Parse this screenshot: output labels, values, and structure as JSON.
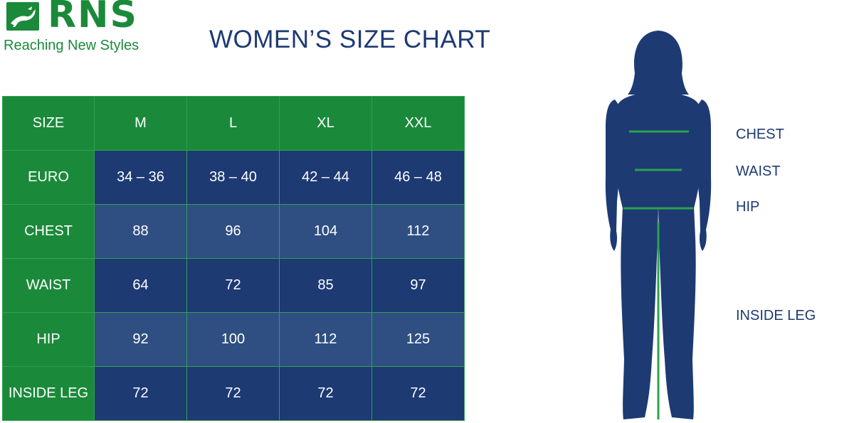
{
  "brand": {
    "name": "RNS",
    "tagline": "Reaching New Styles",
    "logo_icon": "leaping-animal-icon",
    "color": "#1a8a3a"
  },
  "title": "WOMEN’S SIZE CHART",
  "table": {
    "header_label": "SIZE",
    "sizes": [
      "M",
      "L",
      "XL",
      "XXL"
    ],
    "rows": [
      {
        "label": "EURO",
        "values": [
          "34 – 36",
          "38 – 40",
          "42 – 44",
          "46 – 48"
        ]
      },
      {
        "label": "CHEST",
        "values": [
          "88",
          "96",
          "104",
          "112"
        ]
      },
      {
        "label": "WAIST",
        "values": [
          "64",
          "72",
          "85",
          "97"
        ]
      },
      {
        "label": "HIP",
        "values": [
          "92",
          "100",
          "112",
          "125"
        ]
      },
      {
        "label": "INSIDE LEG",
        "values": [
          "72",
          "72",
          "72",
          "72"
        ]
      }
    ]
  },
  "figure": {
    "icon": "woman-silhouette-icon",
    "labels": {
      "chest": "CHEST",
      "waist": "WAIST",
      "hip": "HIP",
      "inside_leg": "INSIDE LEG"
    }
  },
  "colors": {
    "green": "#1a8a3a",
    "navy": "#1d3a73",
    "navy_light": "#2f4f82",
    "measure_line": "#2da24d"
  }
}
